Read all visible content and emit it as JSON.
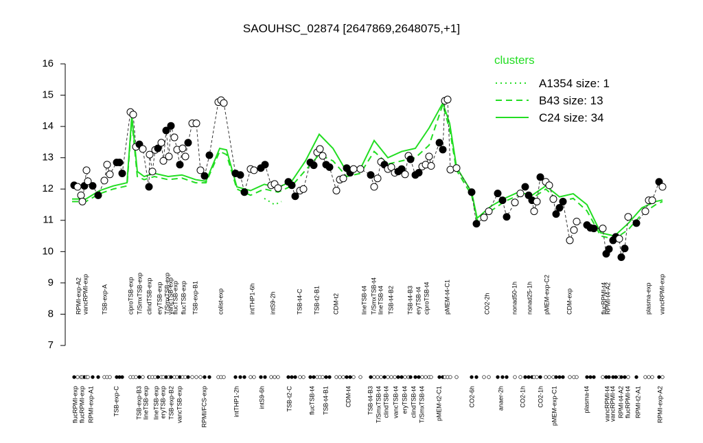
{
  "chart_data": {
    "type": "scatter",
    "title": "SAOUHSC_02874 [2647869,2648075,+1]",
    "xlim": [
      0,
      870
    ],
    "ylim": [
      7,
      16
    ],
    "yticks": [
      7,
      8,
      9,
      10,
      11,
      12,
      13,
      14,
      15,
      16
    ],
    "x": [
      8,
      13,
      18,
      20,
      23,
      26,
      28,
      35,
      43,
      52,
      56,
      60,
      70,
      74,
      78,
      90,
      94,
      98,
      103,
      108,
      117,
      118,
      122,
      126,
      130,
      135,
      138,
      142,
      146,
      149,
      154,
      158,
      162,
      166,
      170,
      174,
      180,
      186,
      192,
      198,
      205,
      218,
      222,
      226,
      243,
      250,
      256,
      265,
      270,
      280,
      286,
      295,
      300,
      305,
      320,
      325,
      330,
      337,
      342,
      352,
      357,
      362,
      366,
      370,
      375,
      380,
      390,
      395,
      400,
      405,
      410,
      415,
      425,
      440,
      445,
      450,
      455,
      460,
      465,
      470,
      475,
      480,
      485,
      490,
      495,
      498,
      505,
      510,
      515,
      520,
      525,
      528,
      540,
      545,
      548,
      552,
      556,
      565,
      587,
      594,
      605,
      612,
      625,
      632,
      638,
      650,
      658,
      665,
      670,
      675,
      678,
      682,
      687,
      695,
      700,
      706,
      710,
      715,
      720,
      730,
      736,
      740,
      755,
      760,
      765,
      778,
      783,
      787,
      793,
      797,
      802,
      805,
      810,
      815,
      827,
      840,
      845,
      850,
      860,
      865
    ],
    "values": [
      12.12,
      12.07,
      11.8,
      11.6,
      12.1,
      12.6,
      12.25,
      12.1,
      11.8,
      12.27,
      12.78,
      12.47,
      12.85,
      12.85,
      12.5,
      14.46,
      14.38,
      13.35,
      13.43,
      13.28,
      12.07,
      13.1,
      12.56,
      13.25,
      13.3,
      13.48,
      12.9,
      13.87,
      13.04,
      14.02,
      13.65,
      13.26,
      12.78,
      13.3,
      13.04,
      13.48,
      14.1,
      14.1,
      12.6,
      12.42,
      13.08,
      14.78,
      14.84,
      14.75,
      12.5,
      12.45,
      11.9,
      12.64,
      12.6,
      12.67,
      12.78,
      12.12,
      12.16,
      12.03,
      12.23,
      12.12,
      11.77,
      11.95,
      12.0,
      12.85,
      12.76,
      13.17,
      13.28,
      13.06,
      12.78,
      12.7,
      11.95,
      12.3,
      12.34,
      12.67,
      12.52,
      12.64,
      12.64,
      12.45,
      12.07,
      12.34,
      12.87,
      12.78,
      12.64,
      12.7,
      12.52,
      12.56,
      12.64,
      12.47,
      13.06,
      12.95,
      12.45,
      12.52,
      12.72,
      12.78,
      13.04,
      12.74,
      13.48,
      13.26,
      14.82,
      14.86,
      12.62,
      12.67,
      11.9,
      10.89,
      11.09,
      11.29,
      11.86,
      11.64,
      11.11,
      11.57,
      11.86,
      12.07,
      11.8,
      11.64,
      11.29,
      11.6,
      12.38,
      12.23,
      12.12,
      11.68,
      11.2,
      11.4,
      11.6,
      10.36,
      10.69,
      10.96,
      10.85,
      10.76,
      10.74,
      10.74,
      9.93,
      10.08,
      10.36,
      10.47,
      10.41,
      9.82,
      10.1,
      11.11,
      10.91,
      11.29,
      11.64,
      11.64,
      12.23,
      12.07
    ],
    "fills": [
      "black",
      "white",
      "white",
      "white",
      "black",
      "white",
      "white",
      "black",
      "black",
      "white",
      "white",
      "white",
      "black",
      "black",
      "black",
      "white",
      "white",
      "white",
      "black",
      "white",
      "black",
      "white",
      "white",
      "white",
      "black",
      "white",
      "white",
      "black",
      "white",
      "black",
      "white",
      "white",
      "black",
      "white",
      "white",
      "black",
      "white",
      "white",
      "white",
      "black",
      "black",
      "white",
      "white",
      "white",
      "black",
      "black",
      "black",
      "white",
      "white",
      "black",
      "black",
      "white",
      "white",
      "white",
      "black",
      "black",
      "black",
      "white",
      "white",
      "black",
      "black",
      "white",
      "white",
      "white",
      "black",
      "black",
      "white",
      "white",
      "white",
      "black",
      "black",
      "white",
      "white",
      "black",
      "white",
      "white",
      "white",
      "black",
      "white",
      "white",
      "white",
      "black",
      "black",
      "white",
      "white",
      "black",
      "black",
      "black",
      "white",
      "white",
      "white",
      "white",
      "black",
      "black",
      "white",
      "white",
      "white",
      "white",
      "black",
      "black",
      "white",
      "white",
      "black",
      "black",
      "black",
      "white",
      "white",
      "black",
      "black",
      "black",
      "white",
      "white",
      "black",
      "white",
      "white",
      "white",
      "black",
      "black",
      "black",
      "white",
      "white",
      "white",
      "black",
      "black",
      "black",
      "white",
      "black",
      "black",
      "black",
      "black",
      "white",
      "black",
      "black",
      "white",
      "black",
      "white",
      "white",
      "white",
      "black",
      "white"
    ],
    "profile_color": "#333333",
    "legend_title": "clusters",
    "series": [
      {
        "name": "A1354 size: 1",
        "color": "#22dd22",
        "style": "dotted",
        "x": [
          285,
          300,
          310
        ],
        "values": [
          11.7,
          11.5,
          11.6
        ]
      },
      {
        "name": "B43 size: 13",
        "color": "#22dd22",
        "style": "dashed",
        "x": [
          5,
          25,
          45,
          65,
          85,
          92,
          100,
          110,
          125,
          145,
          165,
          185,
          200,
          220,
          230,
          245,
          265,
          285,
          305,
          325,
          345,
          365,
          385,
          405,
          425,
          445,
          465,
          485,
          505,
          525,
          545,
          555,
          565,
          587,
          595,
          615,
          635,
          655,
          675,
          695,
          715,
          735,
          755,
          775,
          795,
          815,
          835,
          855,
          865
        ],
        "values": [
          11.6,
          11.6,
          11.85,
          12.0,
          12.1,
          14.2,
          12.4,
          12.3,
          12.4,
          12.3,
          12.35,
          12.2,
          12.2,
          13.2,
          13.1,
          12.0,
          11.8,
          12.0,
          11.9,
          12.1,
          12.6,
          13.1,
          12.9,
          12.4,
          12.5,
          13.2,
          12.8,
          12.9,
          13.0,
          13.4,
          14.7,
          13.9,
          12.6,
          11.8,
          11.0,
          11.3,
          11.6,
          11.8,
          11.7,
          12.0,
          11.6,
          11.7,
          11.3,
          10.5,
          10.4,
          10.7,
          11.2,
          11.5,
          11.6
        ]
      },
      {
        "name": "C24 size: 34",
        "color": "#22dd22",
        "style": "solid",
        "x": [
          5,
          25,
          45,
          65,
          85,
          92,
          100,
          110,
          125,
          145,
          165,
          185,
          200,
          220,
          230,
          245,
          265,
          285,
          305,
          325,
          345,
          365,
          385,
          405,
          425,
          445,
          465,
          485,
          505,
          525,
          545,
          555,
          565,
          587,
          595,
          615,
          635,
          655,
          675,
          695,
          715,
          735,
          755,
          775,
          795,
          815,
          835,
          855,
          865
        ],
        "values": [
          11.68,
          11.68,
          11.95,
          12.1,
          12.2,
          14.35,
          12.56,
          12.4,
          12.5,
          12.4,
          12.45,
          12.3,
          12.25,
          13.3,
          13.25,
          12.07,
          11.95,
          12.15,
          12.05,
          12.25,
          12.9,
          13.75,
          13.3,
          12.55,
          12.65,
          13.55,
          13.0,
          13.2,
          13.3,
          13.95,
          14.75,
          14.1,
          12.7,
          11.9,
          11.07,
          11.45,
          11.7,
          11.9,
          11.8,
          12.1,
          11.75,
          11.85,
          11.5,
          10.6,
          10.5,
          10.9,
          11.4,
          11.6,
          11.65
        ]
      }
    ],
    "xticks_top": [
      {
        "value": 15,
        "label": "RPMI-exp-A2"
      },
      {
        "value": 25,
        "label": "vancRPMI-exp"
      },
      {
        "value": 53,
        "label": "TSB-exp-A"
      },
      {
        "value": 91,
        "label": "ciproTSB-exp"
      },
      {
        "value": 104,
        "label": "T/SmxTSB-exp"
      },
      {
        "value": 118,
        "label": "clindTSB-exp"
      },
      {
        "value": 133,
        "label": "eryTSB-exp"
      },
      {
        "value": 144,
        "label": "T/SmxTSB-exp"
      },
      {
        "value": 149,
        "label": "vancTSB-exp"
      },
      {
        "value": 156,
        "label": "flucTSB-exp"
      },
      {
        "value": 168,
        "label": "flucTSB-exp"
      },
      {
        "value": 185,
        "label": "TSB-exp-B1"
      },
      {
        "value": 222,
        "label": "colist-exp"
      },
      {
        "value": 268,
        "label": "intTHP1-6h"
      },
      {
        "value": 298,
        "label": "intS9-2h"
      },
      {
        "value": 337,
        "label": "TSB-t4-C"
      },
      {
        "value": 362,
        "label": "TSB-t2-B1"
      },
      {
        "value": 390,
        "label": "CDM-t2"
      },
      {
        "value": 431,
        "label": "lineTSB-t4"
      },
      {
        "value": 445,
        "label": "T/SmxTSB-t4"
      },
      {
        "value": 455,
        "label": "lineTSB-t4"
      },
      {
        "value": 470,
        "label": "TSB-t4-B2"
      },
      {
        "value": 498,
        "label": "TSB-t4-B3"
      },
      {
        "value": 510,
        "label": "eryTSB-t4"
      },
      {
        "value": 522,
        "label": "ciproTSB-t4"
      },
      {
        "value": 552,
        "label": "pMEM-t4-C1"
      },
      {
        "value": 610,
        "label": "CO2-2h"
      },
      {
        "value": 650,
        "label": "nonad50-1h"
      },
      {
        "value": 672,
        "label": "nonad25-1h"
      },
      {
        "value": 697,
        "label": "pMEM-exp-C2"
      },
      {
        "value": 730,
        "label": "CDM-exp"
      },
      {
        "value": 780,
        "label": "flucRPMI-t4"
      },
      {
        "value": 786,
        "label": "RPMI-t4-A2"
      },
      {
        "value": 845,
        "label": "plasma-exp"
      },
      {
        "value": 865,
        "label": "vancRPMI-exp"
      }
    ],
    "xticks_bottom": [
      {
        "value": 10,
        "label": "flucRPMI-exp"
      },
      {
        "value": 20,
        "label": "flucRPMI-exp"
      },
      {
        "value": 33,
        "label": "RPMI-exp-A1"
      },
      {
        "value": 70,
        "label": "TSB-exp-C"
      },
      {
        "value": 103,
        "label": "TSB-exp-B3"
      },
      {
        "value": 113,
        "label": "lineTSB-exp"
      },
      {
        "value": 128,
        "label": "lineTSB-exp"
      },
      {
        "value": 138,
        "label": "eryTSB-exp"
      },
      {
        "value": 150,
        "label": "TSB-exp-B2"
      },
      {
        "value": 162,
        "label": "vancTSB-exp"
      },
      {
        "value": 198,
        "label": "RPMI/FCS-exp"
      },
      {
        "value": 245,
        "label": "intTHP1-2h"
      },
      {
        "value": 282,
        "label": "intS9-6h"
      },
      {
        "value": 322,
        "label": "TSB-t2-C"
      },
      {
        "value": 355,
        "label": "flucTSB-t4"
      },
      {
        "value": 375,
        "label": "TSB-t4-B1"
      },
      {
        "value": 408,
        "label": "CDM-t4"
      },
      {
        "value": 440,
        "label": "TSB-t4-B3"
      },
      {
        "value": 452,
        "label": "T/SmxTSB-t4"
      },
      {
        "value": 463,
        "label": "clindTSB-t4"
      },
      {
        "value": 477,
        "label": "vancTSB-t4"
      },
      {
        "value": 490,
        "label": "eryTSB-t4"
      },
      {
        "value": 503,
        "label": "clindTSB-t4"
      },
      {
        "value": 515,
        "label": "T/SmxTSB-t4"
      },
      {
        "value": 540,
        "label": "pMEM-t2-C1"
      },
      {
        "value": 588,
        "label": "CO2-6h"
      },
      {
        "value": 630,
        "label": "anaer-2h"
      },
      {
        "value": 662,
        "label": "CO2-1h"
      },
      {
        "value": 688,
        "label": "CO2-1h"
      },
      {
        "value": 708,
        "label": "pMEM-exp-C1"
      },
      {
        "value": 755,
        "label": "plasma-t4"
      },
      {
        "value": 785,
        "label": "vancRPMI-t4"
      },
      {
        "value": 793,
        "label": "vancRPMI-t4"
      },
      {
        "value": 805,
        "label": "RPMI-t4-A2"
      },
      {
        "value": 815,
        "label": "flucRPMI-t4"
      },
      {
        "value": 830,
        "label": "RPMI-t2-A1"
      },
      {
        "value": 862,
        "label": "RPMI-exp-A2"
      }
    ]
  }
}
